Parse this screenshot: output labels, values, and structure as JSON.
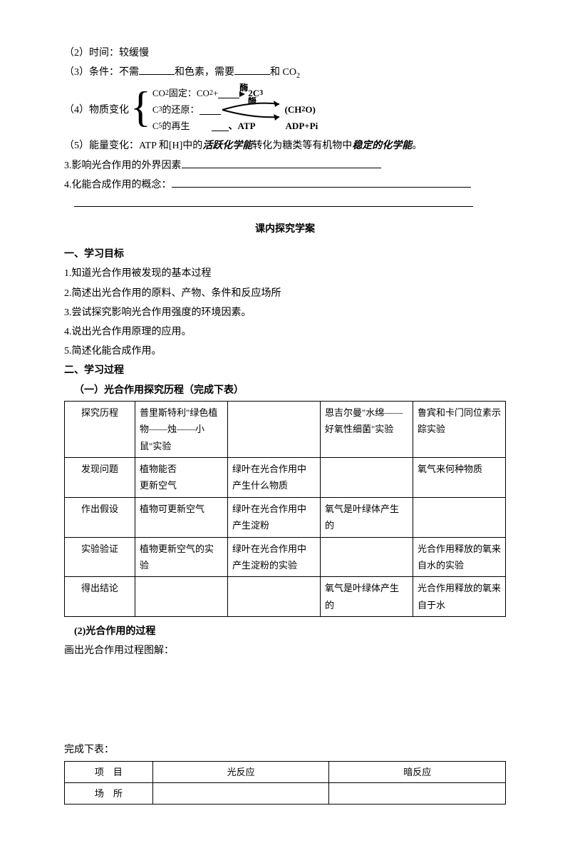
{
  "lines": {
    "l2": "（2）时间：较缓慢",
    "l3a": "（3）条件：不需",
    "l3b": "和色素，需要",
    "l3c": "和 CO",
    "l4": "（4）物质变化",
    "d1a": "CO",
    "d1b": " 固定：CO",
    "d1c": " + ",
    "enzyme": "酶",
    "d1d": "2C",
    "d2a": "C",
    "d2b": "的还原：",
    "d2c": "(CH",
    "d2d": "O)",
    "d3a": "C",
    "d3b": "的再生",
    "d3c": "、ATP",
    "d3d": "ADP+Pi",
    "l5a": "（5）能量变化：ATP 和[H]中的",
    "l5b": "活跃化学能",
    "l5c": "转化为糖类等有机物中",
    "l5d": "稳定的化学能",
    "l5e": "。",
    "l6": "3.影响光合作用的外界因素",
    "l7": "4.化能合成作用的概念：",
    "section_title": "课内探究学案",
    "h1": "一、学习目标",
    "g1": "1.知道光合作用被发现的基本过程",
    "g2": "2.简述出光合作用的原料、产物、条件和反应场所",
    "g3": "3.尝试探究影响光合作用强度的环境因素。",
    "g4": "4.说出光合作用原理的应用。",
    "g5": "5.简述化能合成作用。",
    "h2": "二、学习过程",
    "h2a": "（一）光合作用探究历程（完成下表）",
    "h2b": "(2)光合作用的过程",
    "draw": "画出光合作用过程图解：",
    "complete": "完成下表："
  },
  "table1": {
    "rows": [
      [
        "探究历程",
        "普里斯特利\"绿色植物——烛——小鼠\"实验",
        "",
        "恩吉尔曼\"水绵——好氧性细菌\"实验",
        "鲁宾和卡门同位素示踪实验"
      ],
      [
        "发现问题",
        "植物能否\n更新空气",
        "绿叶在光合作用中产生什么物质",
        "",
        "氧气来何种物质"
      ],
      [
        "作出假设",
        "植物可更新空气",
        "绿叶在光合作用中产生淀粉",
        "氧气是叶绿体产生的",
        ""
      ],
      [
        "实验验证",
        "植物更新空气的实验",
        "绿叶在光合作用中产生淀粉的实验",
        "",
        "光合作用释放的氧来自水的实验"
      ],
      [
        "得出结论",
        "",
        "",
        "氧气是叶绿体产生的",
        "光合作用释放的氧来自于水"
      ]
    ],
    "col_widths": [
      "16%",
      "21%",
      "21%",
      "21%",
      "21%"
    ]
  },
  "table2": {
    "headers": [
      "项　目",
      "光反应",
      "暗反应"
    ],
    "rows": [
      [
        "场　所",
        "",
        ""
      ]
    ],
    "col_widths": [
      "20%",
      "40%",
      "40%"
    ]
  },
  "colors": {
    "text": "#000000",
    "bg": "#ffffff",
    "border": "#000000"
  }
}
